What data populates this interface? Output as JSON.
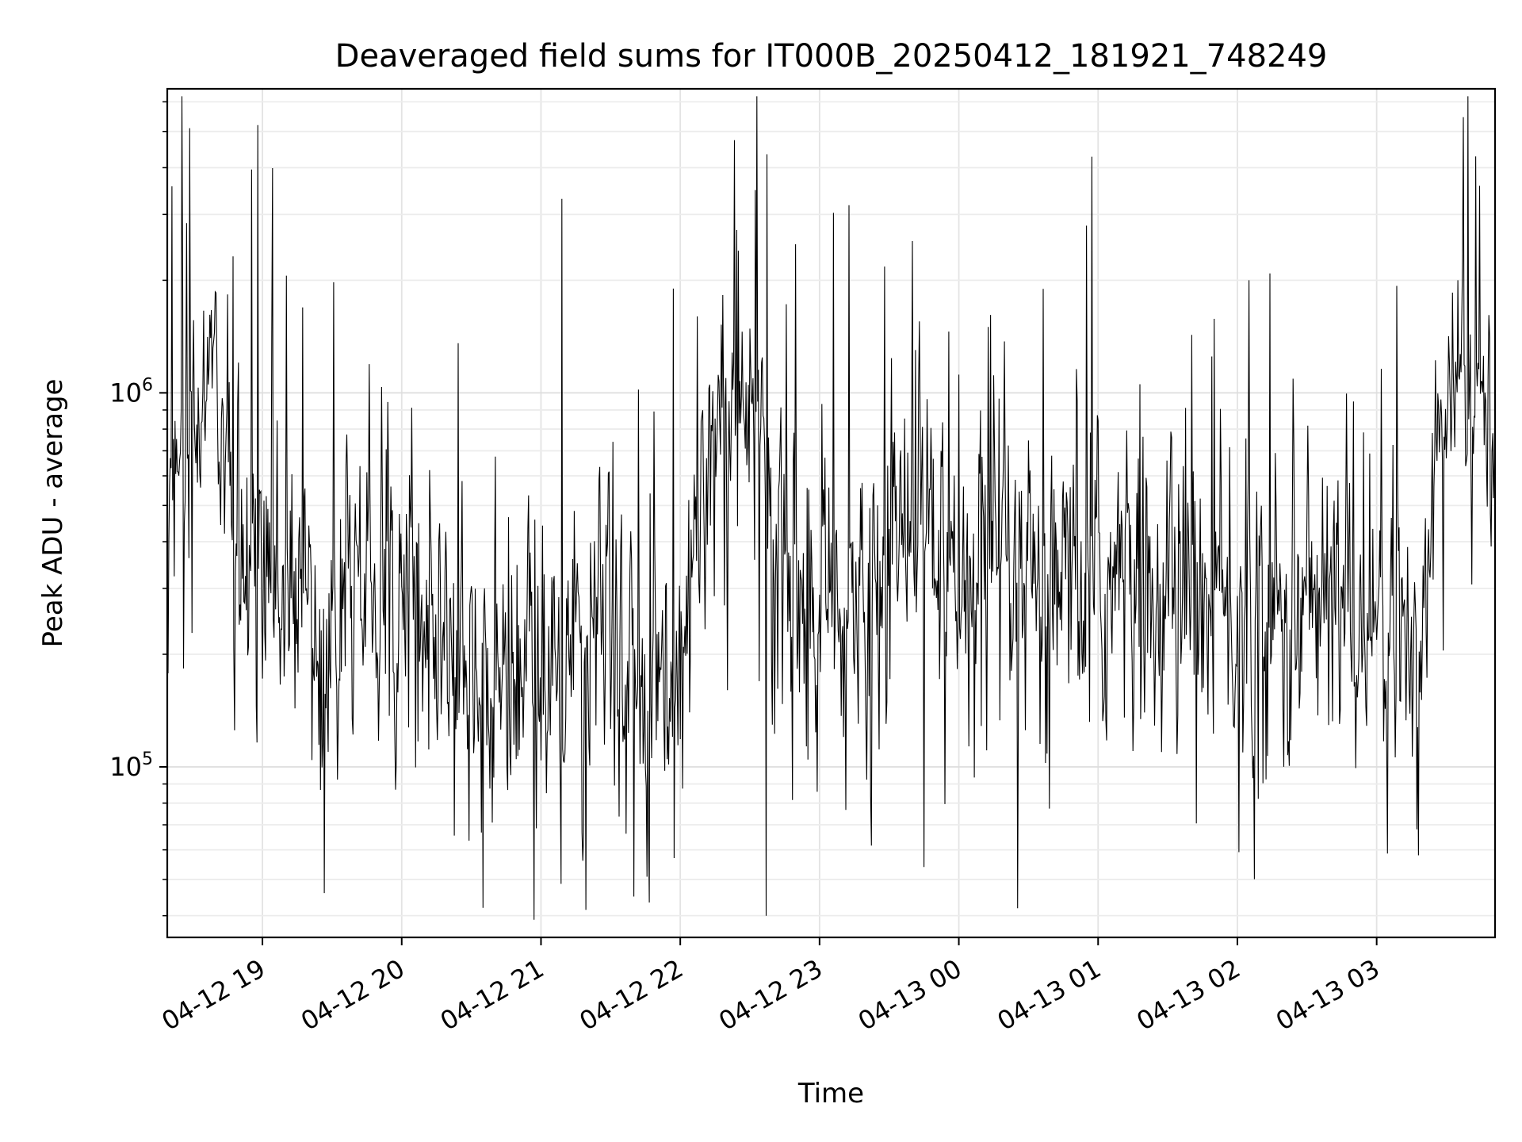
{
  "chart_data": {
    "type": "line",
    "title": "Deaveraged field sums for IT000B_20250412_181921_748249",
    "xlabel": "Time",
    "ylabel": "Peak ADU - average",
    "yscale": "log",
    "ylim": [
      35000,
      6500000
    ],
    "xlim": [
      "2025-04-12 18:19",
      "2025-04-13 03:51"
    ],
    "x_tick_labels": [
      "04-12 19",
      "04-12 20",
      "04-12 21",
      "04-12 22",
      "04-12 23",
      "04-13 00",
      "04-13 01",
      "04-13 02",
      "04-13 03"
    ],
    "y_tick_labels": [
      "10^5",
      "10^6"
    ],
    "grid": true,
    "line_color": "#000000",
    "series": [
      {
        "x": [
          "2025-04-12 18:20",
          "2025-04-12 18:30",
          "2025-04-12 18:40",
          "2025-04-12 18:50",
          "2025-04-12 18:58",
          "2025-04-12 19:10",
          "2025-04-12 19:25",
          "2025-04-12 19:40",
          "2025-04-12 20:00",
          "2025-04-12 20:15",
          "2025-04-12 20:30",
          "2025-04-12 20:45",
          "2025-04-12 21:00",
          "2025-04-12 21:20",
          "2025-04-12 21:40",
          "2025-04-12 22:00",
          "2025-04-12 22:15",
          "2025-04-12 22:30",
          "2025-04-12 22:45",
          "2025-04-12 23:00",
          "2025-04-12 23:20",
          "2025-04-12 23:40",
          "2025-04-13 00:00",
          "2025-04-13 00:20",
          "2025-04-13 00:40",
          "2025-04-13 01:00",
          "2025-04-13 01:20",
          "2025-04-13 01:40",
          "2025-04-13 02:00",
          "2025-04-13 02:20",
          "2025-04-13 02:40",
          "2025-04-13 03:00",
          "2025-04-13 03:15",
          "2025-04-13 03:30",
          "2025-04-13 03:45"
        ],
        "y": [
          700000,
          900000,
          1000000,
          330000,
          300000,
          280000,
          260000,
          280000,
          300000,
          240000,
          200000,
          190000,
          180000,
          200000,
          190000,
          180000,
          800000,
          1200000,
          300000,
          250000,
          240000,
          600000,
          250000,
          280000,
          260000,
          320000,
          280000,
          300000,
          240000,
          250000,
          280000,
          250000,
          180000,
          1000000,
          950000
        ],
        "peaks": [
          {
            "x": "2025-04-12 18:58",
            "y": 5200000
          },
          {
            "x": "2025-04-12 21:09",
            "y": 3300000
          },
          {
            "x": "2025-04-12 21:57",
            "y": 1900000
          },
          {
            "x": "2025-04-12 22:25",
            "y": 2400000
          },
          {
            "x": "2025-04-13 00:55",
            "y": 2800000
          },
          {
            "x": "2025-04-13 02:05",
            "y": 2000000
          },
          {
            "x": "2025-04-13 03:35",
            "y": 2000000
          }
        ],
        "troughs": [
          {
            "x": "2025-04-12 20:35",
            "y": 42000
          },
          {
            "x": "2025-04-12 20:57",
            "y": 39000
          },
          {
            "x": "2025-04-12 21:40",
            "y": 45000
          },
          {
            "x": "2025-04-12 22:37",
            "y": 40000
          },
          {
            "x": "2025-04-12 23:45",
            "y": 54000
          },
          {
            "x": "2025-04-13 03:18",
            "y": 58000
          }
        ]
      }
    ]
  }
}
